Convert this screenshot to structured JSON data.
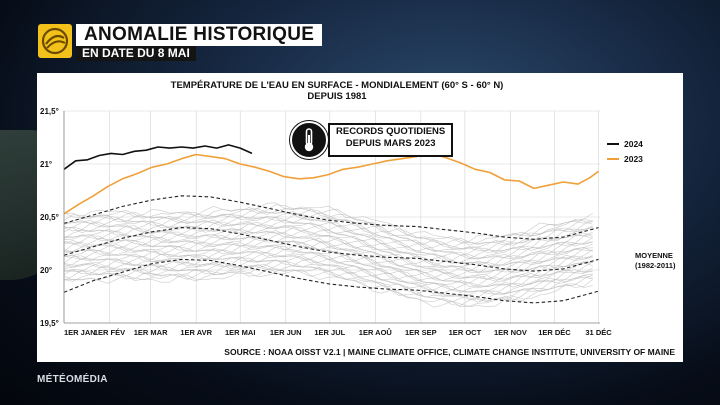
{
  "header": {
    "title": "ANOMALIE HISTORIQUE",
    "subtitle": "EN DATE DU 8 MAI"
  },
  "brand_color": "#f2c21b",
  "callout": {
    "line1": "RECORDS QUOTIDIENS",
    "line2": "DEPUIS MARS 2023"
  },
  "footer": {
    "brand": "MÉTÉOMÉDIA"
  },
  "chart_data": {
    "type": "line",
    "title_line1": "TEMPÉRATURE DE L'EAU EN SURFACE - MONDIALEMENT (60° S - 60° N)",
    "title_line2": "DEPUIS 1981",
    "source": "SOURCE : NOAA OISST V2.1 | MAINE CLIMATE OFFICE, CLIMATE CHANGE INSTITUTE, UNIVERSITY OF MAINE",
    "ylim": [
      19.5,
      21.5
    ],
    "xlim": [
      0,
      365
    ],
    "y_ticks": [
      {
        "value": 19.5,
        "label": "19,5°"
      },
      {
        "value": 20.0,
        "label": "20°"
      },
      {
        "value": 20.5,
        "label": "20,5°"
      },
      {
        "value": 21.0,
        "label": "21°"
      },
      {
        "value": 21.5,
        "label": "21,5°"
      }
    ],
    "x_ticks": [
      {
        "day": 0,
        "label": "1ER JAN"
      },
      {
        "day": 31,
        "label": "1ER FÉV"
      },
      {
        "day": 59,
        "label": "1ER MAR"
      },
      {
        "day": 90,
        "label": "1ER AVR"
      },
      {
        "day": 120,
        "label": "1ER MAI"
      },
      {
        "day": 151,
        "label": "1ER JUN"
      },
      {
        "day": 181,
        "label": "1ER JUL"
      },
      {
        "day": 212,
        "label": "1ER AOÛ"
      },
      {
        "day": 243,
        "label": "1ER SEP"
      },
      {
        "day": 273,
        "label": "1ER OCT"
      },
      {
        "day": 304,
        "label": "1ER NOV"
      },
      {
        "day": 334,
        "label": "1ER DÉC"
      },
      {
        "day": 364,
        "label": "31 DÉC"
      }
    ],
    "grid": true,
    "legend": [
      {
        "label": "2024",
        "color": "#111111"
      },
      {
        "label": "2023",
        "color": "#f0a03a"
      }
    ],
    "mean_label_line1": "MOYENNE",
    "mean_label_line2": "(1982-2011)",
    "series": [
      {
        "name": "2024",
        "color": "#111111",
        "days": [
          0,
          8,
          16,
          24,
          32,
          40,
          48,
          56,
          64,
          72,
          80,
          88,
          96,
          104,
          112,
          120,
          128
        ],
        "values": [
          20.95,
          21.03,
          21.04,
          21.08,
          21.1,
          21.09,
          21.12,
          21.13,
          21.16,
          21.15,
          21.16,
          21.15,
          21.17,
          21.15,
          21.18,
          21.15,
          21.1
        ]
      },
      {
        "name": "2023",
        "color": "#f0a03a",
        "days": [
          0,
          10,
          20,
          30,
          40,
          50,
          60,
          70,
          80,
          90,
          100,
          110,
          120,
          130,
          140,
          150,
          160,
          170,
          180,
          190,
          200,
          210,
          220,
          230,
          240,
          250,
          260,
          270,
          280,
          290,
          300,
          310,
          320,
          330,
          340,
          350,
          358,
          364
        ],
        "values": [
          20.53,
          20.62,
          20.7,
          20.79,
          20.86,
          20.91,
          20.97,
          21.0,
          21.05,
          21.09,
          21.07,
          21.05,
          21.0,
          20.97,
          20.93,
          20.88,
          20.86,
          20.87,
          20.9,
          20.95,
          20.97,
          21.0,
          21.03,
          21.05,
          21.07,
          21.1,
          21.06,
          21.01,
          20.95,
          20.92,
          20.85,
          20.84,
          20.77,
          20.8,
          20.83,
          20.81,
          20.87,
          20.93
        ]
      },
      {
        "name": "",
        "color": "#222222",
        "dash": true,
        "days": [
          0,
          20,
          40,
          60,
          80,
          100,
          120,
          140,
          160,
          180,
          200,
          220,
          240,
          260,
          280,
          300,
          320,
          340,
          364
        ],
        "values": [
          20.14,
          20.22,
          20.3,
          20.36,
          20.4,
          20.39,
          20.34,
          20.28,
          20.22,
          20.17,
          20.14,
          20.12,
          20.11,
          20.08,
          20.05,
          20.01,
          19.99,
          20.01,
          20.1
        ]
      },
      {
        "name": "",
        "color": "#222222",
        "dash": true,
        "days": [
          0,
          20,
          40,
          60,
          80,
          100,
          120,
          140,
          160,
          180,
          200,
          220,
          240,
          260,
          280,
          300,
          320,
          340,
          364
        ],
        "values": [
          20.44,
          20.52,
          20.6,
          20.66,
          20.7,
          20.69,
          20.64,
          20.58,
          20.52,
          20.47,
          20.44,
          20.42,
          20.41,
          20.38,
          20.35,
          20.31,
          20.29,
          20.31,
          20.4
        ]
      },
      {
        "name": "",
        "color": "#222222",
        "dash": true,
        "days": [
          0,
          20,
          40,
          60,
          80,
          100,
          120,
          140,
          160,
          180,
          200,
          220,
          240,
          260,
          280,
          300,
          320,
          340,
          364
        ],
        "values": [
          19.79,
          19.9,
          19.98,
          20.06,
          20.1,
          20.09,
          20.04,
          19.98,
          19.92,
          19.87,
          19.84,
          19.82,
          19.81,
          19.78,
          19.75,
          19.71,
          19.69,
          19.71,
          19.8
        ]
      }
    ]
  }
}
